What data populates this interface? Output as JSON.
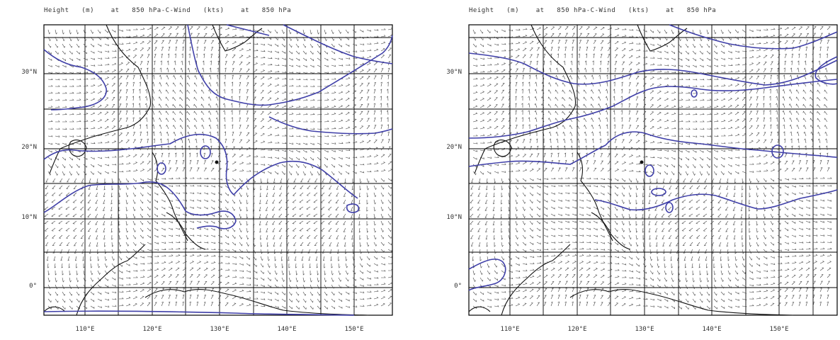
{
  "panels": [
    {
      "id": "left",
      "title": "Height   (m)    at   850 hPa-C-Wind   (kts)    at   850 hPa",
      "lat_labels": [
        "30°N",
        "20°N",
        "10°N",
        "0°"
      ],
      "lon_labels": [
        "110°E",
        "120°E",
        "130°E",
        "140°E",
        "150°E"
      ]
    },
    {
      "id": "right",
      "title": "Height   (m)    at   850 hPa-C-Wind   (kts)    at   850 hPa",
      "lat_labels": [
        "30°N",
        "20°N",
        "10°N",
        "0°"
      ],
      "lon_labels": [
        "110°E",
        "120°E",
        "130°E",
        "140°E",
        "150°E"
      ]
    }
  ],
  "map": {
    "lon_range": [
      104,
      160
    ],
    "lat_range": [
      -4,
      36
    ],
    "contour_color": "#3f3fa8",
    "coast_color": "#111111",
    "grid_color": "#000000",
    "wind_color": "#333333"
  }
}
